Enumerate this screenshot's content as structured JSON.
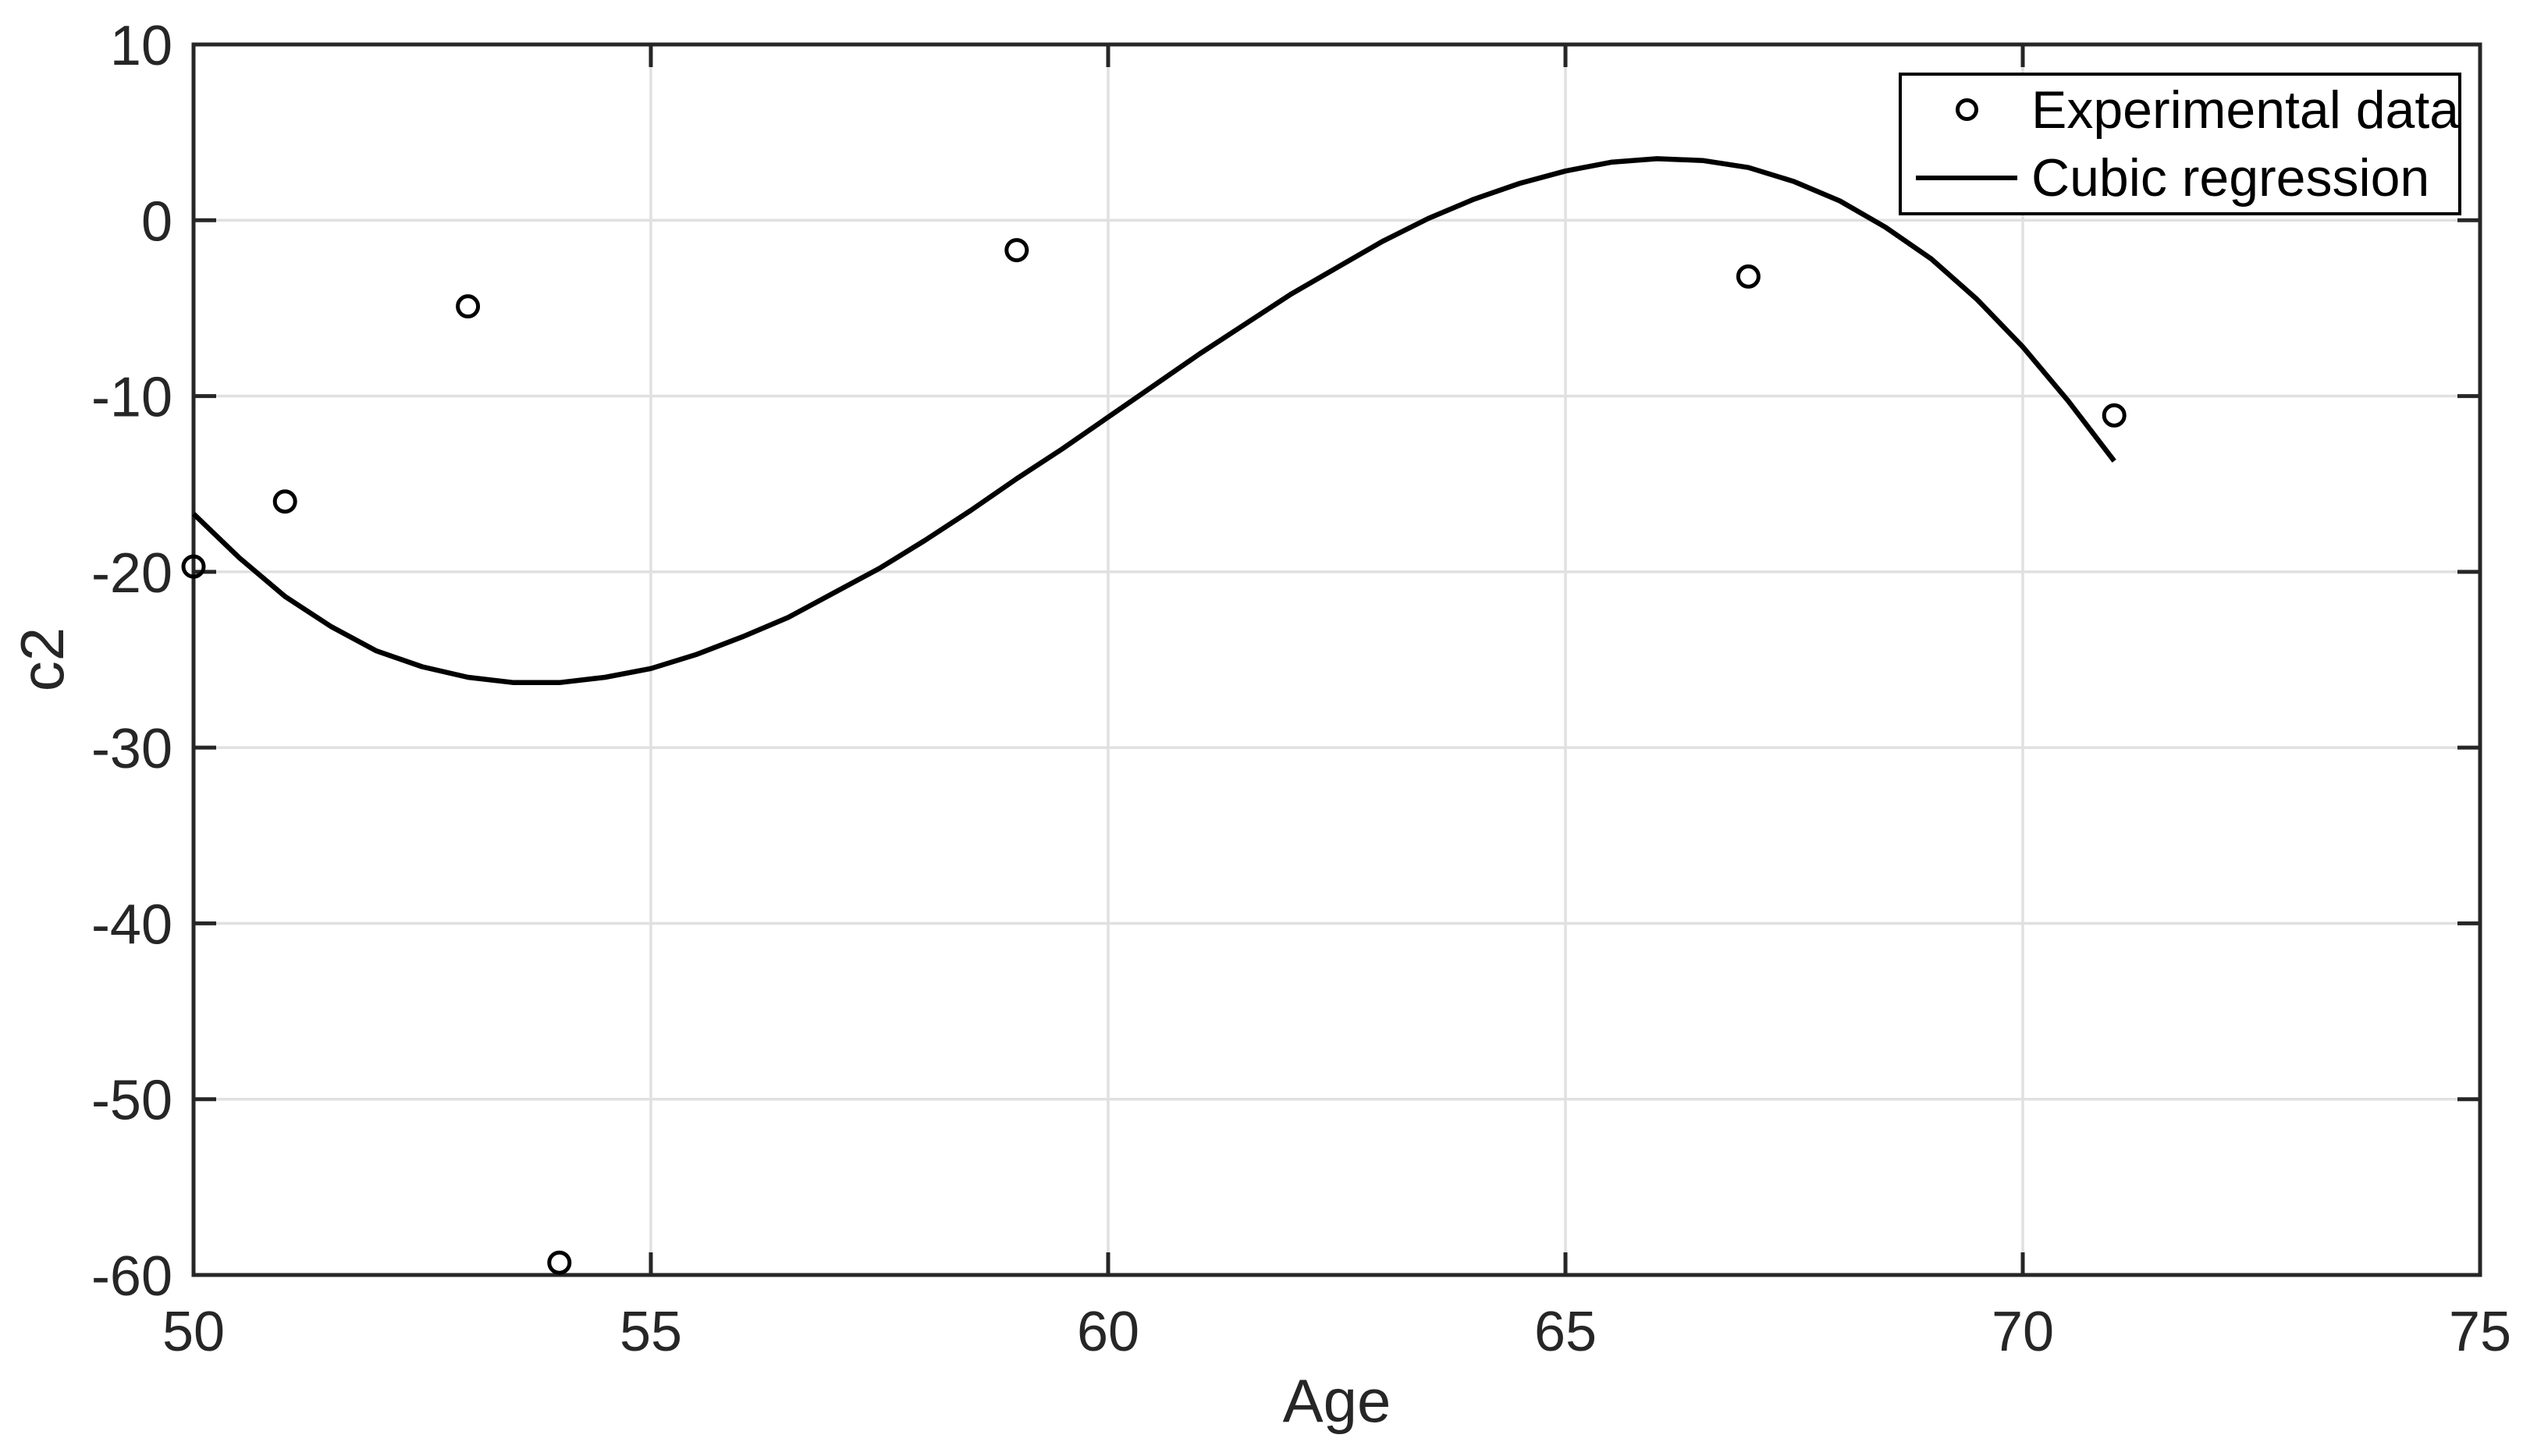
{
  "figure": {
    "background": "#ffffff"
  },
  "colors": {
    "axis": "#262626",
    "grid": "#e0e0e0",
    "tick_label": "#262626",
    "axis_label": "#262626",
    "data": "#000000",
    "legend_border": "#000000",
    "legend_background": "#ffffff"
  },
  "chart_data": {
    "type": "scatter",
    "title": "",
    "xlabel": "Age",
    "ylabel": "c2",
    "xlim": [
      50,
      75
    ],
    "ylim": [
      -60,
      10
    ],
    "xticks": [
      50,
      55,
      60,
      65,
      70,
      75
    ],
    "yticks": [
      10,
      0,
      -10,
      -20,
      -30,
      -40,
      -50,
      -60
    ],
    "grid": true,
    "legend_position": "top-right",
    "series": [
      {
        "name": "Experimental data",
        "type": "scatter",
        "marker": "circle",
        "color": "#000000",
        "points": [
          [
            50,
            -19.7
          ],
          [
            51,
            -16
          ],
          [
            53,
            -4.9
          ],
          [
            54,
            -59.3
          ],
          [
            59,
            -1.7
          ],
          [
            67,
            -3.2
          ],
          [
            71,
            -11.1
          ]
        ]
      },
      {
        "name": "Cubic regression",
        "type": "line",
        "color": "#000000",
        "x_start": 50,
        "x_step": 0.5,
        "x_end": 71,
        "y": [
          -16.7,
          -19.2,
          -21.4,
          -23.1,
          -24.5,
          -25.4,
          -26.0,
          -26.3,
          -26.3,
          -26.0,
          -25.5,
          -24.7,
          -23.7,
          -22.6,
          -21.2,
          -19.8,
          -18.2,
          -16.5,
          -14.7,
          -13.0,
          -11.2,
          -9.4,
          -7.6,
          -5.9,
          -4.2,
          -2.7,
          -1.2,
          0.1,
          1.2,
          2.1,
          2.8,
          3.3,
          3.5,
          3.4,
          3.0,
          2.2,
          1.1,
          -0.4,
          -2.2,
          -4.5,
          -7.2,
          -10.3,
          -13.7
        ]
      }
    ]
  }
}
